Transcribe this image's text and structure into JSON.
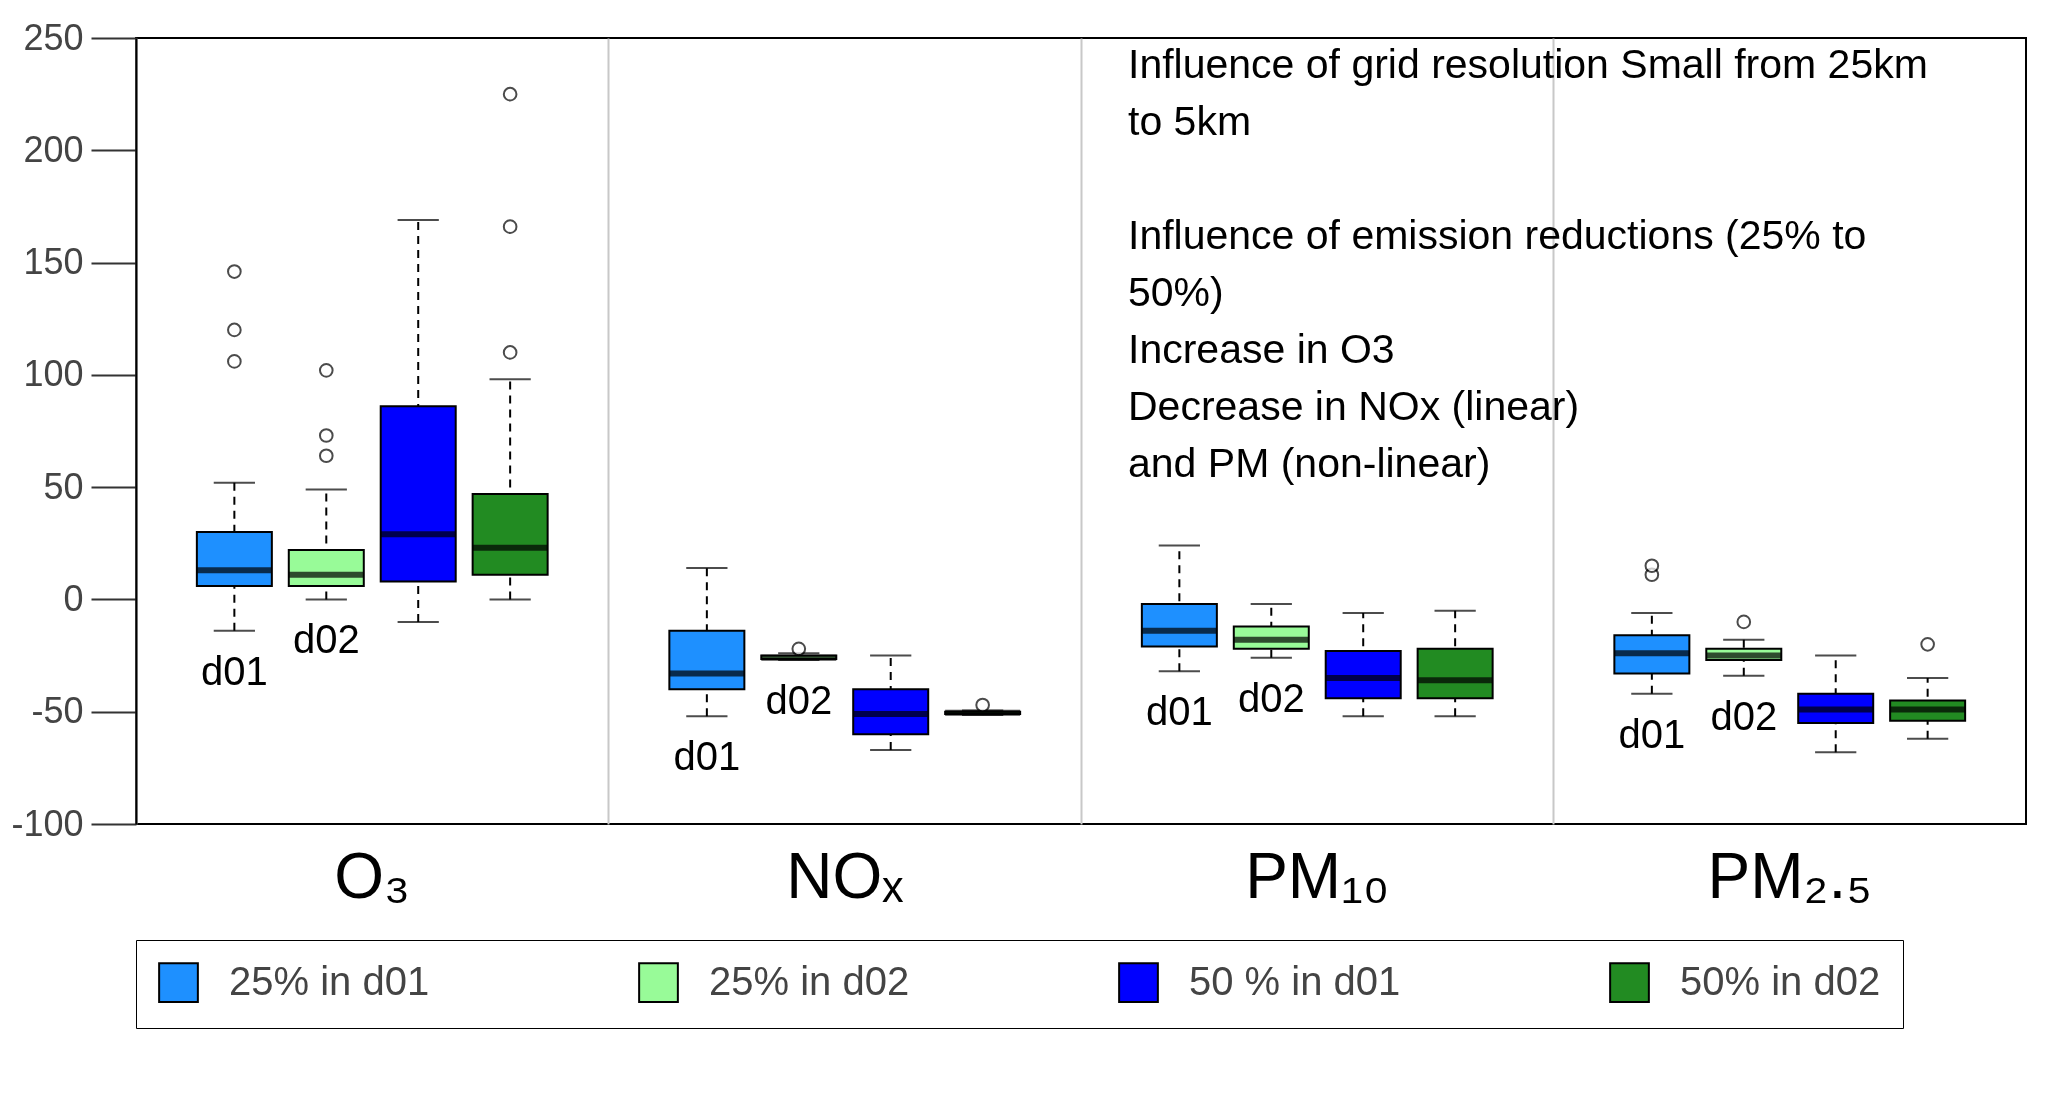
{
  "chart_data": {
    "type": "box",
    "categories": [
      "O₃",
      "NOₓ",
      "PM₁₀",
      "PM₂.₅"
    ],
    "series": [
      {
        "name": "25% in d01",
        "color": "#1e90ff",
        "boxes": [
          {
            "low": -14,
            "q1": 6,
            "median": 13,
            "q3": 30,
            "high": 52,
            "outliers": [
              106,
              120,
              146
            ]
          },
          {
            "low": -52,
            "q1": -40,
            "median": -33,
            "q3": -14,
            "high": 14
          },
          {
            "low": -32,
            "q1": -21,
            "median": -14,
            "q3": -2,
            "high": 24
          },
          {
            "low": -42,
            "q1": -33,
            "median": -24,
            "q3": -16,
            "high": -6,
            "outliers": [
              11,
              15
            ]
          }
        ]
      },
      {
        "name": "25% in d02",
        "color": "#98fb98",
        "boxes": [
          {
            "low": 0,
            "q1": 6,
            "median": 11,
            "q3": 22,
            "high": 49,
            "outliers": [
              64,
              73,
              102
            ]
          },
          {
            "low": -27,
            "q1": -26.5,
            "median": -26,
            "q3": -25,
            "high": -24,
            "outliers": [
              -22
            ]
          },
          {
            "low": -26,
            "q1": -22,
            "median": -18,
            "q3": -12,
            "high": -2
          },
          {
            "low": -34,
            "q1": -27,
            "median": -25,
            "q3": -22,
            "high": -18,
            "outliers": [
              -10
            ]
          }
        ]
      },
      {
        "name": "50 % in d01",
        "color": "#0000ff",
        "boxes": [
          {
            "low": -10,
            "q1": 8,
            "median": 29,
            "q3": 86,
            "high": 169
          },
          {
            "low": -67,
            "q1": -60,
            "median": -51,
            "q3": -40,
            "high": -25
          },
          {
            "low": -52,
            "q1": -44,
            "median": -35,
            "q3": -23,
            "high": -6
          },
          {
            "low": -68,
            "q1": -55,
            "median": -49,
            "q3": -42,
            "high": -25
          }
        ]
      },
      {
        "name": "50% in d02",
        "color": "#228b22",
        "boxes": [
          {
            "low": 0,
            "q1": 11,
            "median": 23,
            "q3": 47,
            "high": 98,
            "outliers": [
              110,
              166,
              225
            ]
          },
          {
            "low": -51.5,
            "q1": -51,
            "median": -50.5,
            "q3": -50,
            "high": -49.5,
            "outliers": [
              -47
            ]
          },
          {
            "low": -52,
            "q1": -44,
            "median": -36,
            "q3": -22,
            "high": -5
          },
          {
            "low": -62,
            "q1": -54,
            "median": -49,
            "q3": -45,
            "high": -35,
            "outliers": [
              -20
            ]
          }
        ]
      }
    ],
    "ylim": [
      -100,
      250
    ],
    "yticks": [
      -100,
      -50,
      0,
      50,
      100,
      150,
      200,
      250
    ],
    "grid": "x",
    "legend": "bottom",
    "annotations": [
      "Influence of grid resolution Small from 25km to 5km",
      "Influence of emission reductions (25% to 50%)\nIncrease in O3\nDecrease in NOx (linear)\nand PM (non-linear)",
      "d01",
      "d02",
      "d01",
      "d02",
      "d01",
      "d02",
      "d01",
      "d02"
    ]
  }
}
